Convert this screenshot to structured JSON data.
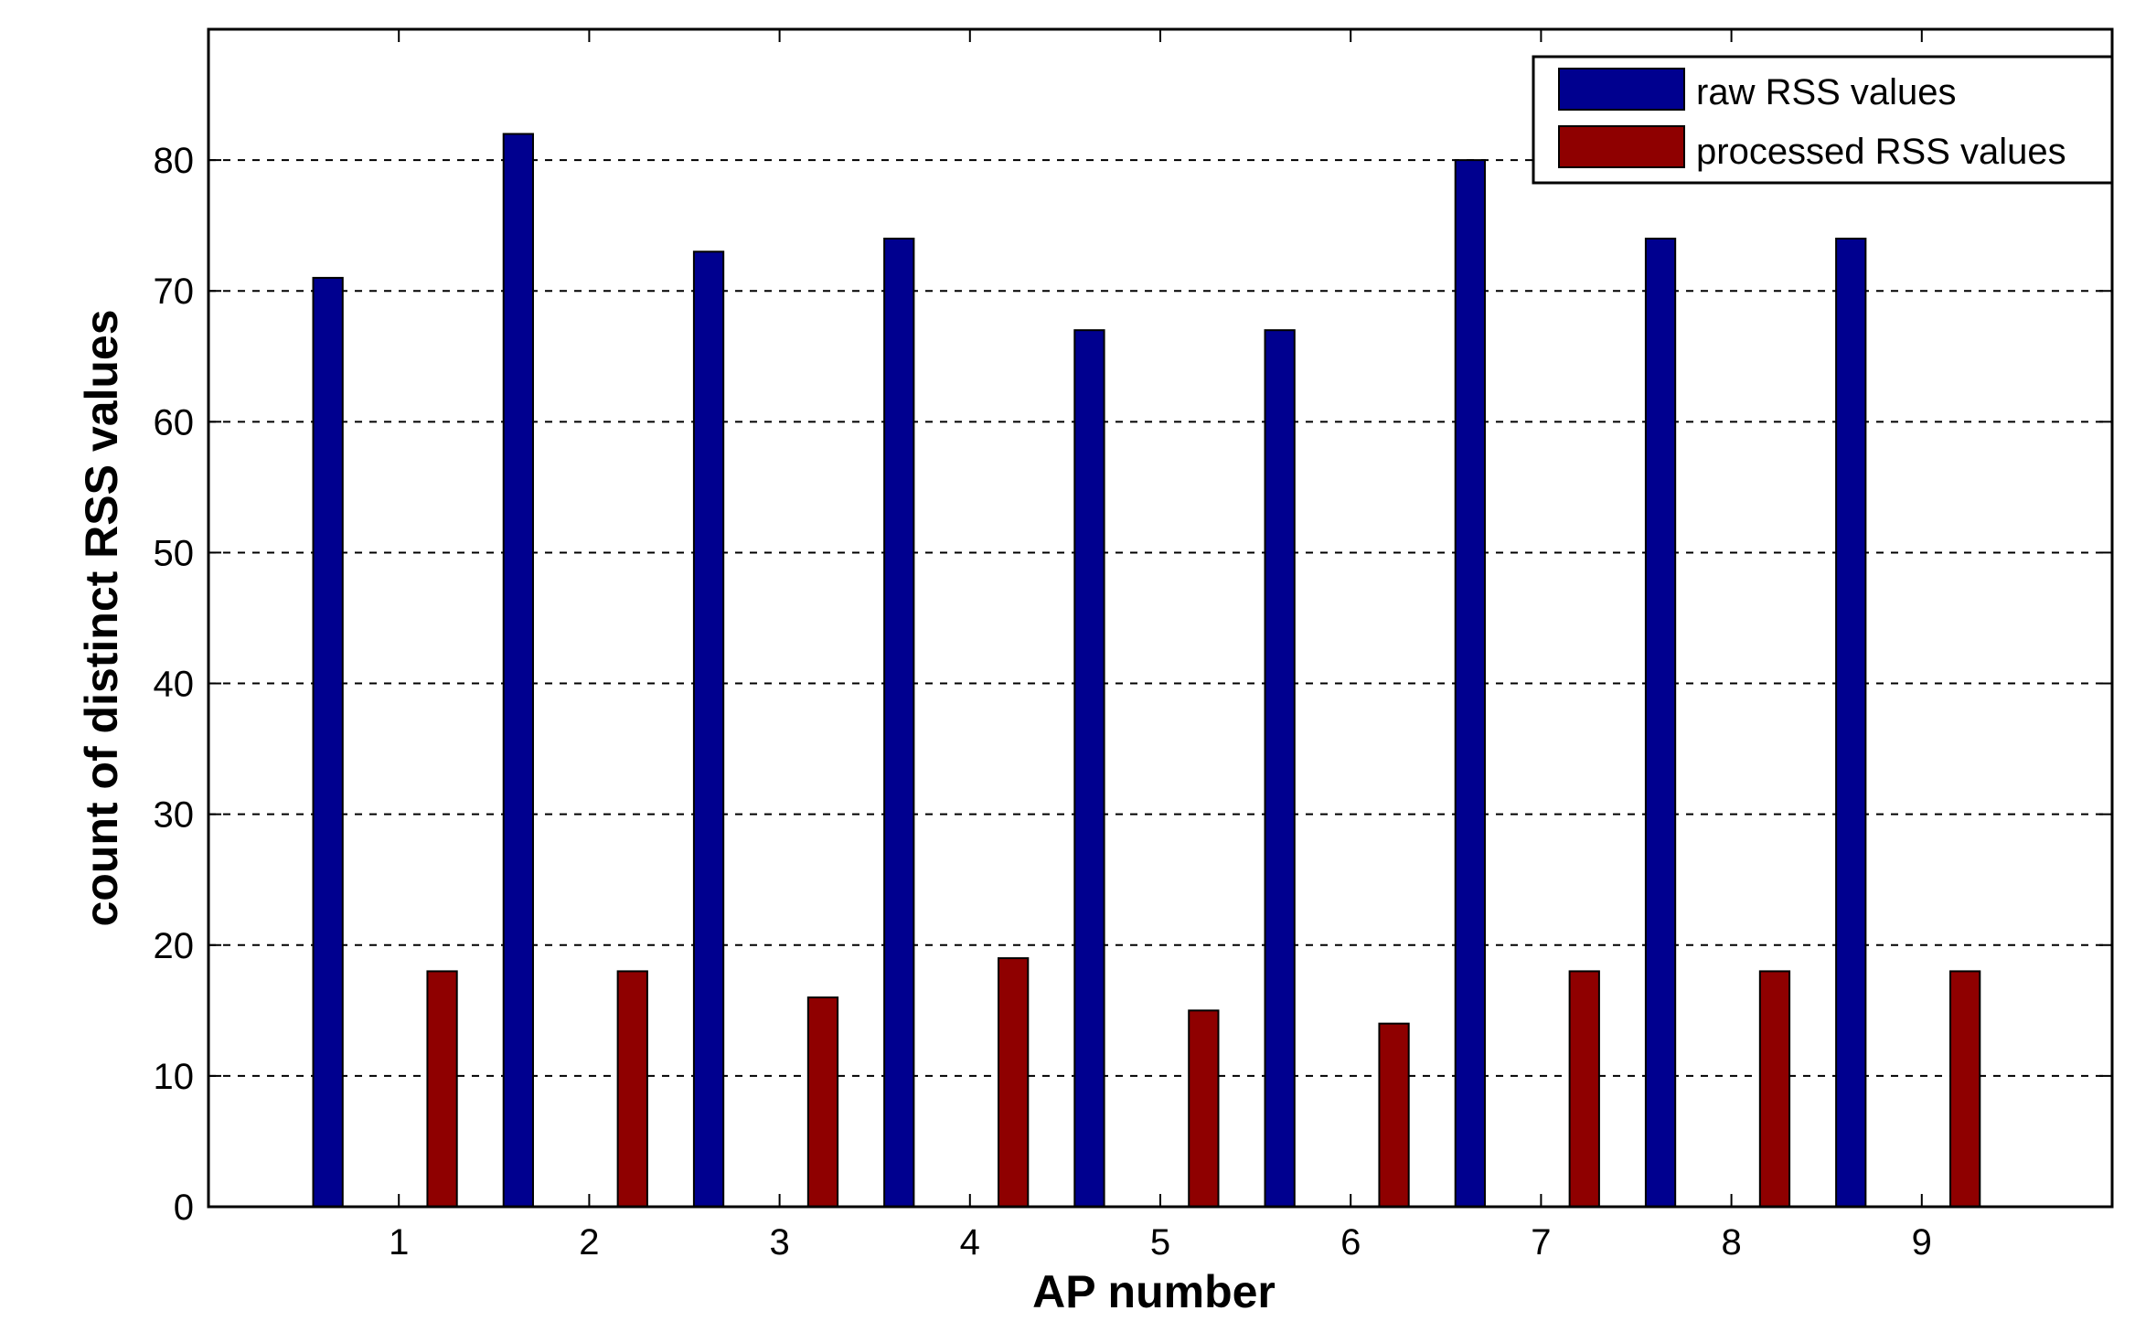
{
  "chart_data": {
    "type": "bar",
    "title": "",
    "xlabel": "AP number",
    "ylabel": "count of distinct RSS values",
    "categories": [
      "1",
      "2",
      "3",
      "4",
      "5",
      "6",
      "7",
      "8",
      "9"
    ],
    "ylim": [
      0,
      90
    ],
    "yticks": [
      0,
      10,
      20,
      30,
      40,
      50,
      60,
      70,
      80
    ],
    "grid": "horizontal dashed",
    "legend_position": "top-right",
    "series": [
      {
        "name": "raw RSS values",
        "color": "#00008f",
        "values": [
          71,
          82,
          73,
          74,
          67,
          67,
          80,
          74,
          74
        ]
      },
      {
        "name": "processed RSS values",
        "color": "#8f0000",
        "values": [
          18,
          18,
          16,
          19,
          15,
          14,
          18,
          18,
          18
        ]
      }
    ]
  }
}
